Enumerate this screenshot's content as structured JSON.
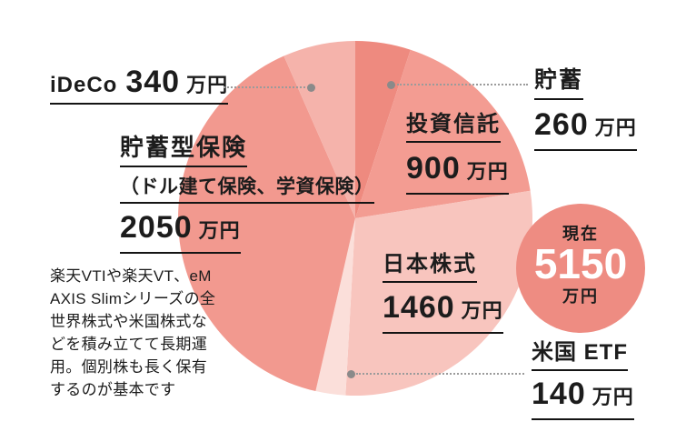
{
  "colors": {
    "background": "#ffffff",
    "text": "#1c1c1c",
    "underline": "#141414",
    "leader_line": "#9b9b9b",
    "leader_dot": "#8a8a8a",
    "badge_bg": "#ee8c82",
    "badge_number": "#ffffff"
  },
  "chart_data": {
    "type": "pie",
    "title": "",
    "unit": "万円",
    "start_angle_deg": 0,
    "direction": "clockwise",
    "total": {
      "label": "現在",
      "value": 5150,
      "unit": "万円"
    },
    "slices": [
      {
        "key": "savings",
        "label": "貯蓄",
        "value": 260,
        "color": "#ee8a7f"
      },
      {
        "key": "mutual-funds",
        "label": "投資信託",
        "value": 900,
        "color": "#f39c92"
      },
      {
        "key": "japan-stocks",
        "label": "日本株式",
        "value": 1460,
        "color": "#f8c5be"
      },
      {
        "key": "us-etf",
        "label": "米国 ETF",
        "value": 140,
        "color": "#fbdfda"
      },
      {
        "key": "insurance",
        "label": "貯蓄型保険",
        "value": 2050,
        "color": "#f2998f",
        "subtitle": "（ドル建て保険、学資保険）"
      },
      {
        "key": "ideco",
        "label": "iDeCo",
        "value": 340,
        "color": "#f5b3ab"
      }
    ]
  },
  "note": {
    "lines": [
      "楽天VTIや楽天VT、eM",
      "AXIS Slimシリーズの全",
      "世界株式や米国株式な",
      "どを積み立てて長期運",
      "用。個別株も長く保有",
      "するのが基本です"
    ]
  }
}
